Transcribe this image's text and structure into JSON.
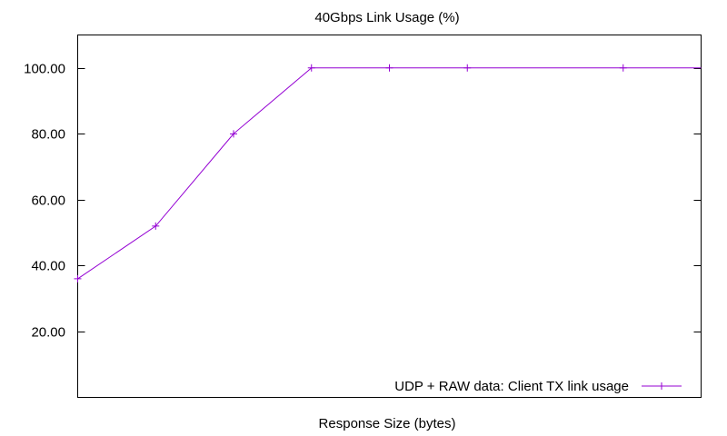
{
  "chart_data": {
    "type": "line",
    "title": "40Gbps Link Usage (%)",
    "xlabel": "Response Size (bytes)",
    "ylabel": "",
    "ylim": [
      0,
      110
    ],
    "xlim": [
      0,
      8
    ],
    "yticks": [
      20,
      40,
      60,
      80,
      100
    ],
    "ytick_labels": [
      "20.00",
      "40.00",
      "60.00",
      "80.00",
      "100.00"
    ],
    "grid": false,
    "legend_position": "bottom-right",
    "series": [
      {
        "name": "UDP + RAW data: Client TX link usage",
        "color": "#9400d3",
        "marker": "plus",
        "x": [
          0,
          1,
          2,
          3,
          4,
          5,
          7,
          8
        ],
        "y": [
          36,
          52,
          80,
          100,
          100,
          100,
          100,
          100
        ],
        "markers_shown": [
          0,
          1,
          2,
          3,
          4,
          5,
          6
        ]
      }
    ]
  }
}
